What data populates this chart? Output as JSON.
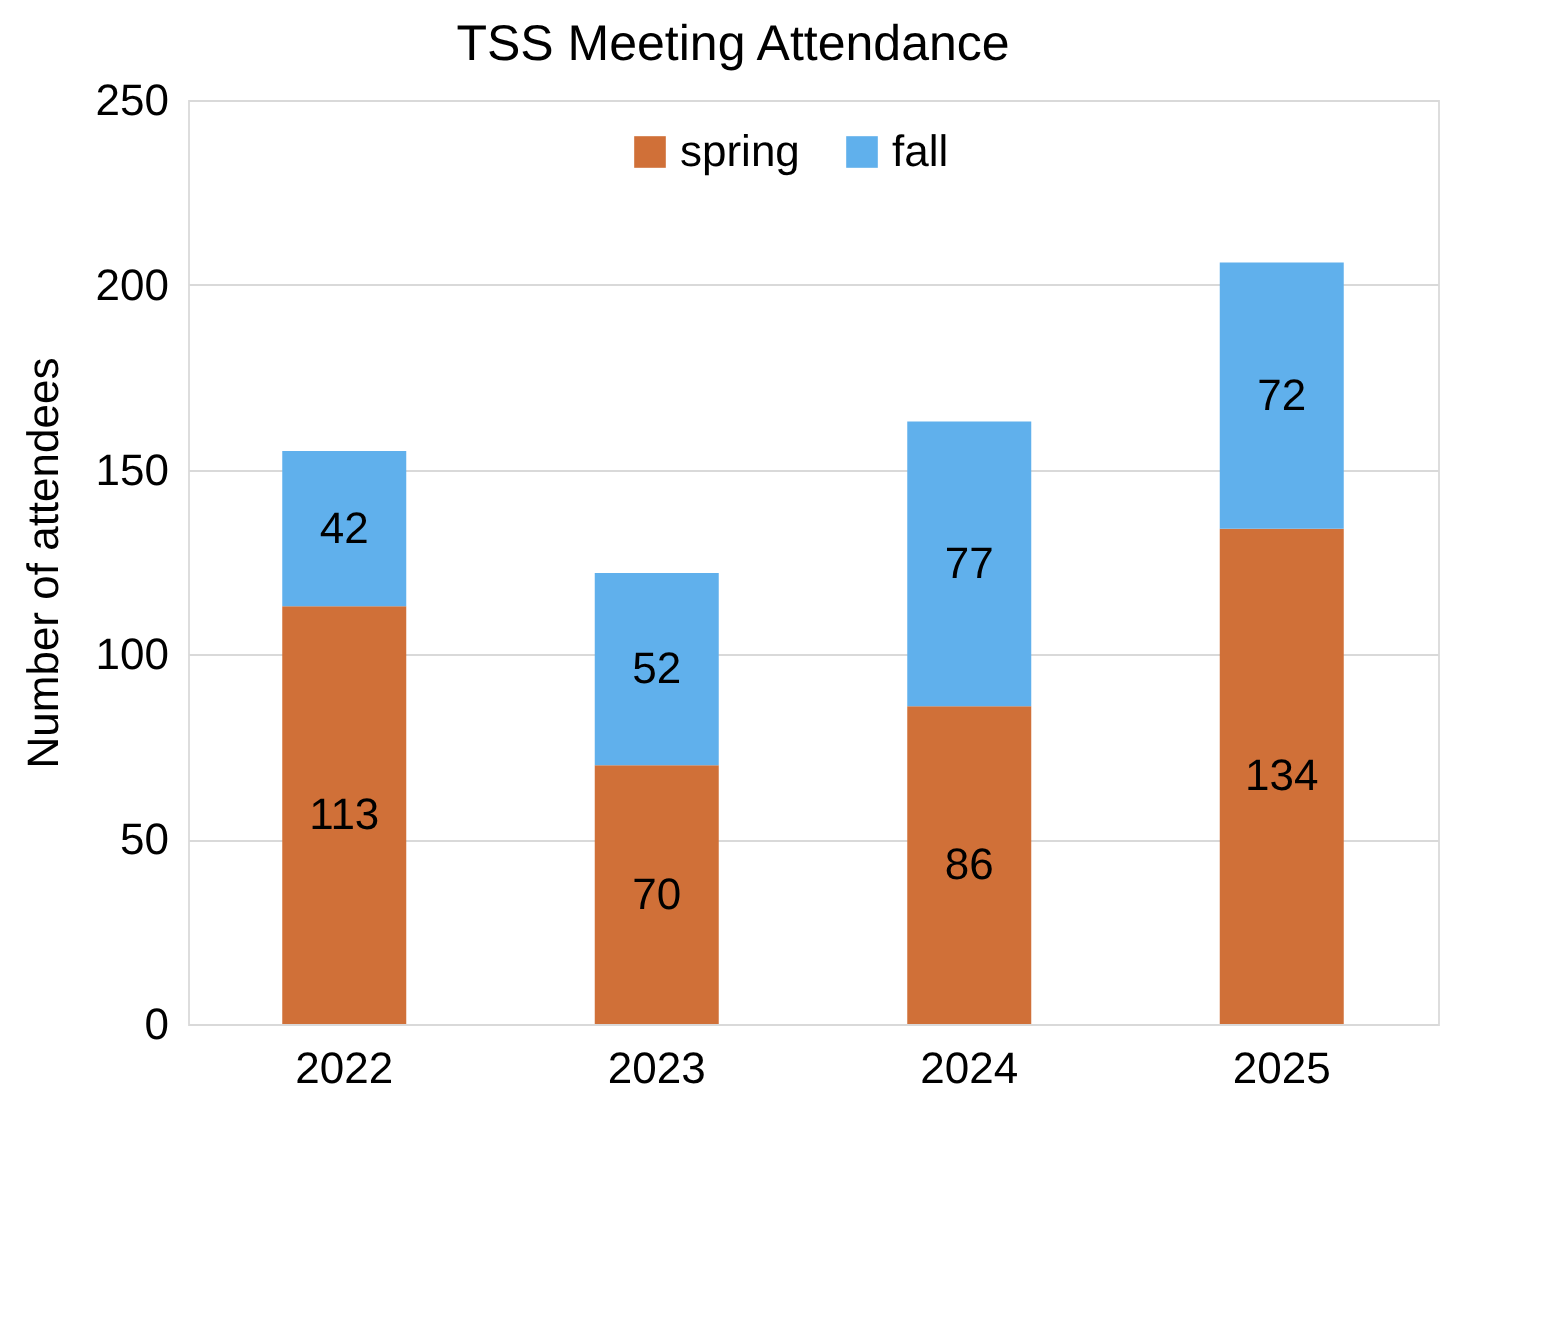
{
  "chart_data": {
    "type": "bar",
    "title": "TSS Meeting Attendance",
    "ylabel": "Number of attendees",
    "categories": [
      "2022",
      "2023",
      "2024",
      "2025"
    ],
    "series": [
      {
        "name": "spring",
        "color": "#d07038",
        "values": [
          113,
          70,
          86,
          134
        ]
      },
      {
        "name": "fall",
        "color": "#60b0ec",
        "values": [
          42,
          52,
          77,
          72
        ]
      }
    ],
    "stacked": true,
    "ylim": [
      0,
      250
    ],
    "yticks": [
      0,
      50,
      100,
      150,
      200,
      250
    ],
    "grid": "y",
    "legend": "top",
    "data_labels": true
  }
}
